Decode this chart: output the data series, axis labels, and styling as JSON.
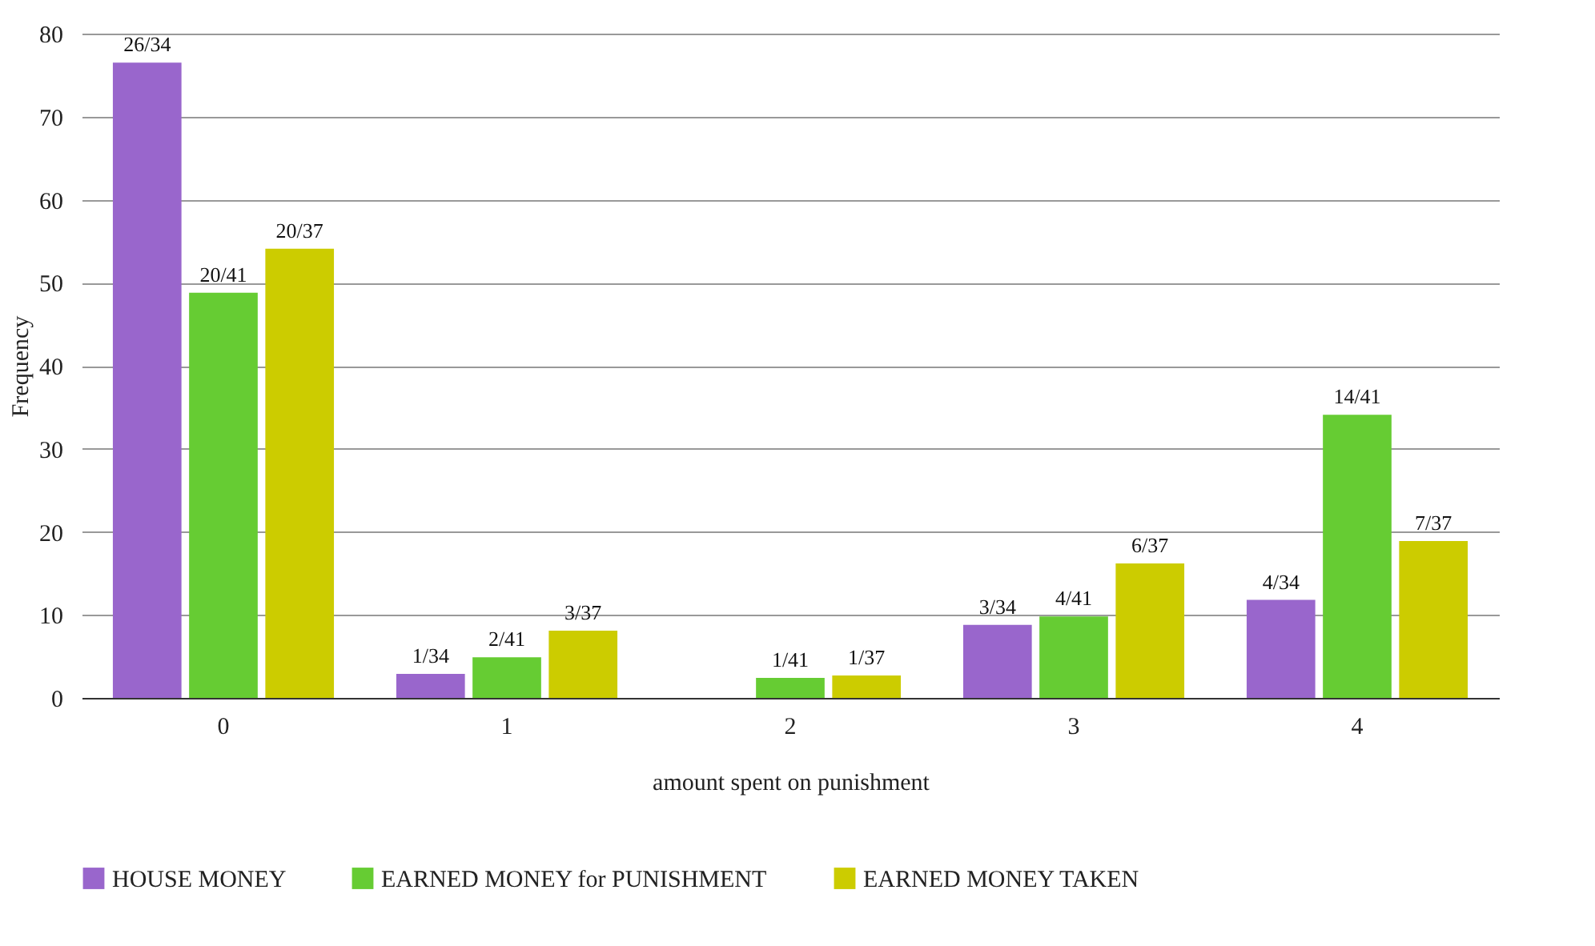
{
  "chart_data": {
    "type": "bar",
    "xlabel": "amount spent on punishment",
    "ylabel": "Frequency",
    "categories": [
      "0",
      "1",
      "2",
      "3",
      "4"
    ],
    "series": [
      {
        "name": "HOUSE MONEY",
        "color": "#9966cc",
        "values": [
          76.5,
          2.9,
          0,
          8.8,
          11.8
        ],
        "value_labels": [
          "26/34",
          "1/34",
          null,
          "3/34",
          "4/34"
        ]
      },
      {
        "name": "EARNED MONEY for PUNISHMENT",
        "color": "#66cc33",
        "values": [
          48.8,
          4.9,
          2.4,
          9.8,
          34.1
        ],
        "value_labels": [
          "20/41",
          "2/41",
          "1/41",
          "4/41",
          "14/41"
        ]
      },
      {
        "name": "EARNED MONEY TAKEN",
        "color": "#cccc00",
        "values": [
          54.1,
          8.1,
          2.7,
          16.2,
          18.9
        ],
        "value_labels": [
          "20/37",
          "3/37",
          "1/37",
          "6/37",
          "7/37"
        ]
      }
    ],
    "ylim": [
      0,
      80
    ],
    "yticks": [
      0,
      10,
      20,
      30,
      40,
      50,
      60,
      70,
      80
    ],
    "grid": "y",
    "legend": "bottom"
  }
}
